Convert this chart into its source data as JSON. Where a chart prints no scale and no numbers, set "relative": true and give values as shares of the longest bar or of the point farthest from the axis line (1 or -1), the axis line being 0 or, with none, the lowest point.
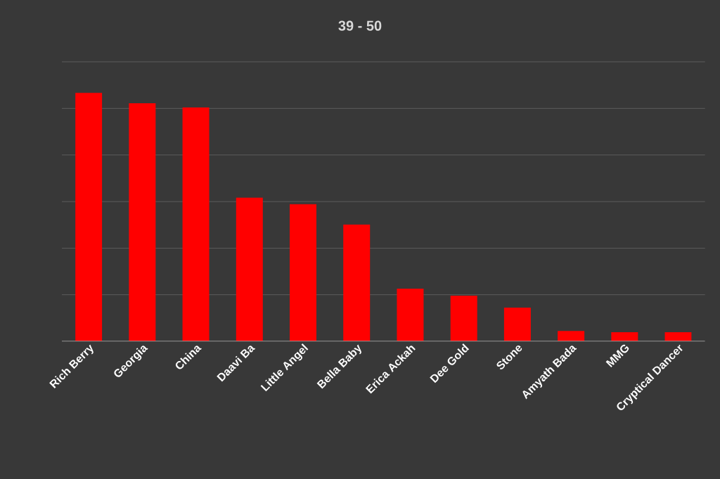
{
  "chart_data": {
    "type": "bar",
    "title": "39          -          50",
    "categories": [
      "Rich Berry",
      "Georgia",
      "China",
      "Daavi Ba",
      "Little Angel",
      "Bella Baby",
      "Erica Ackah",
      "Dee Gold",
      "Stone",
      "Amyath Bada",
      "MMG",
      "Cryptical Dancer"
    ],
    "values": [
      1,
      0.958,
      0.941,
      0.578,
      0.552,
      0.47,
      0.212,
      0.184,
      0.136,
      0.042,
      0.037,
      0.037
    ],
    "relative": true,
    "color": "#ff0000",
    "grid": "y"
  }
}
